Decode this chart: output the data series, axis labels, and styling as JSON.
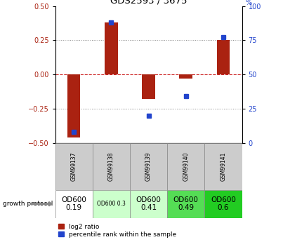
{
  "title": "GDS2593 / 3675",
  "samples": [
    "GSM99137",
    "GSM99138",
    "GSM99139",
    "GSM99140",
    "GSM99141"
  ],
  "log2_ratio": [
    -0.46,
    0.38,
    -0.18,
    -0.03,
    0.25
  ],
  "percentile_rank": [
    8,
    88,
    20,
    34,
    77
  ],
  "ylim_left": [
    -0.5,
    0.5
  ],
  "ylim_right": [
    0,
    100
  ],
  "yticks_left": [
    -0.5,
    -0.25,
    0,
    0.25,
    0.5
  ],
  "yticks_right": [
    0,
    25,
    50,
    75,
    100
  ],
  "bar_color": "#aa2211",
  "dot_color": "#2244cc",
  "zero_line_color": "#cc2222",
  "grid_color": "#333333",
  "protocol_label": "growth protocol",
  "protocol_values": [
    "OD600\n0.19",
    "OD600 0.3",
    "OD600\n0.41",
    "OD600\n0.49",
    "OD600\n0.6"
  ],
  "protocol_colors": [
    "#ffffff",
    "#ccffcc",
    "#ccffcc",
    "#55dd55",
    "#22cc22"
  ],
  "protocol_small_font": [
    false,
    true,
    false,
    false,
    false
  ],
  "legend_red": "log2 ratio",
  "legend_blue": "percentile rank within the sample",
  "sample_bg": "#cccccc"
}
